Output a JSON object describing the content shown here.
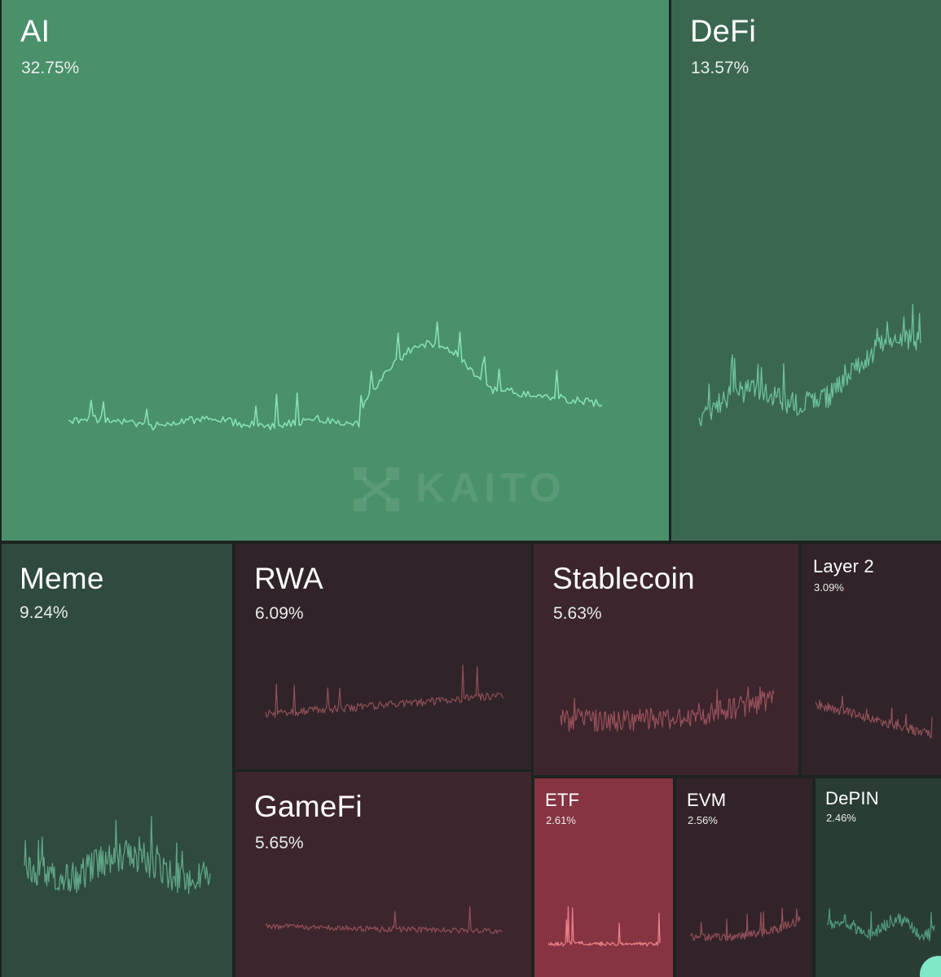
{
  "chart_data": {
    "type": "treemap",
    "watermark": "KAITO",
    "tiles": [
      {
        "id": "ai",
        "label": "AI",
        "value": "32.75%",
        "share": 32.75,
        "color": "#4a906b",
        "line": "#86e0b3"
      },
      {
        "id": "defi",
        "label": "DeFi",
        "value": "13.57%",
        "share": 13.57,
        "color": "#3b6751",
        "line": "#6cc19a"
      },
      {
        "id": "meme",
        "label": "Meme",
        "value": "9.24%",
        "share": 9.24,
        "color": "#2f4a3f",
        "line": "#5fa585"
      },
      {
        "id": "rwa",
        "label": "RWA",
        "value": "6.09%",
        "share": 6.09,
        "color": "#31232a",
        "line": "#8f5058"
      },
      {
        "id": "gamefi",
        "label": "GameFi",
        "value": "5.65%",
        "share": 5.65,
        "color": "#3d252e",
        "line": "#93505a"
      },
      {
        "id": "stablecoin",
        "label": "Stablecoin",
        "value": "5.63%",
        "share": 5.63,
        "color": "#3c252d",
        "line": "#9a515b"
      },
      {
        "id": "layer2",
        "label": "Layer 2",
        "value": "3.09%",
        "share": 3.09,
        "color": "#31232a",
        "line": "#8f5058"
      },
      {
        "id": "etf",
        "label": "ETF",
        "value": "2.61%",
        "share": 2.61,
        "color": "#863342",
        "line": "#e77f86"
      },
      {
        "id": "evm",
        "label": "EVM",
        "value": "2.56%",
        "share": 2.56,
        "color": "#32232a",
        "line": "#934f59"
      },
      {
        "id": "depin",
        "label": "DePIN",
        "value": "2.46%",
        "share": 2.46,
        "color": "#2a3d35",
        "line": "#4f9a7b"
      }
    ]
  }
}
